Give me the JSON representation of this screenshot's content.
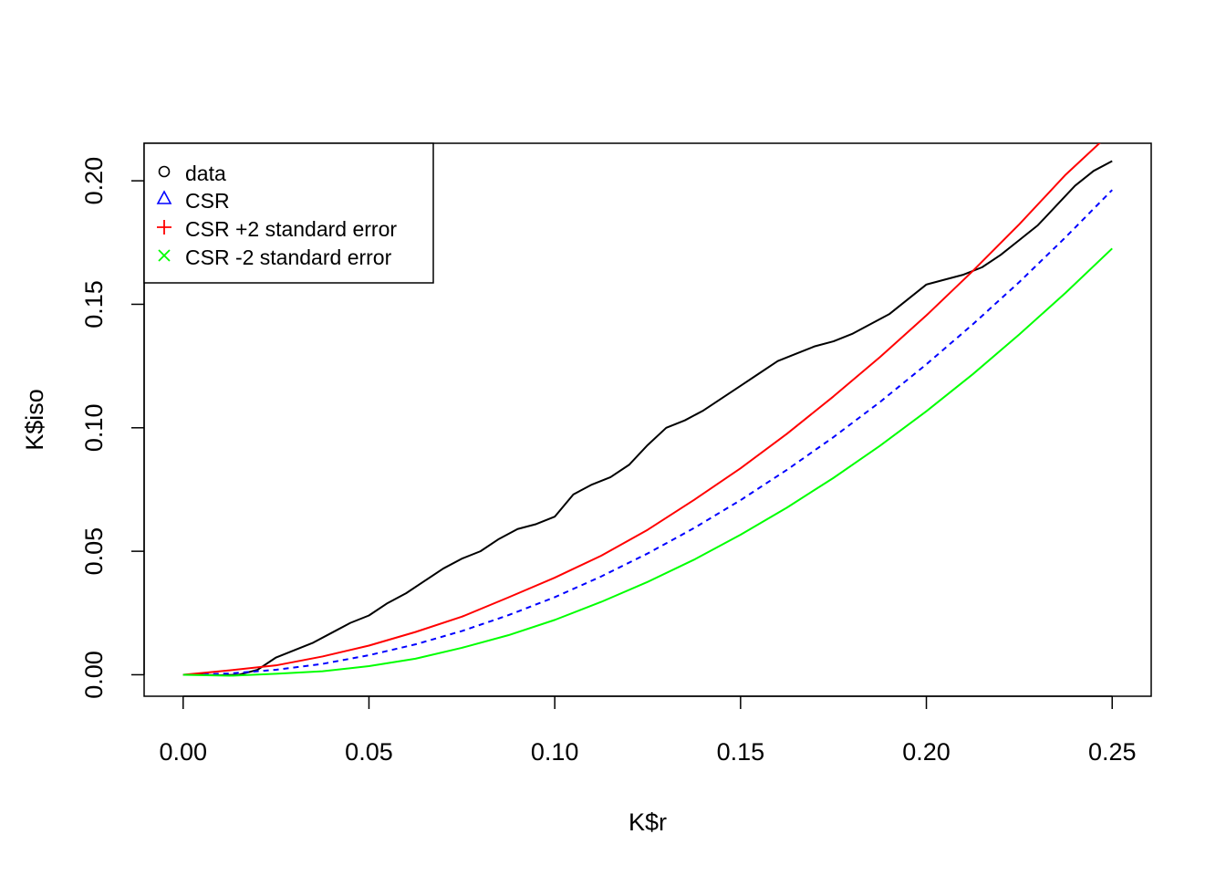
{
  "chart_data": {
    "type": "line",
    "title": "",
    "xlabel": "K$r",
    "ylabel": "K$iso",
    "xlim": [
      -0.0105,
      0.2605
    ],
    "ylim": [
      -0.0087,
      0.2152
    ],
    "x_ticks": [
      0.0,
      0.05,
      0.1,
      0.15,
      0.2,
      0.25
    ],
    "x_tick_labels": [
      "0.00",
      "0.05",
      "0.10",
      "0.15",
      "0.20",
      "0.25"
    ],
    "y_ticks": [
      0.0,
      0.05,
      0.1,
      0.15,
      0.2
    ],
    "y_tick_labels": [
      "0.00",
      "0.05",
      "0.10",
      "0.15",
      "0.20"
    ],
    "grid": false,
    "legend_position": "top-left",
    "legend": [
      {
        "label": "data",
        "symbol": "circle",
        "color": "#000000"
      },
      {
        "label": "CSR",
        "symbol": "triangle",
        "color": "#0000ff"
      },
      {
        "label": "CSR +2 standard error",
        "symbol": "plus",
        "color": "#ff0000"
      },
      {
        "label": "CSR -2 standard error",
        "symbol": "cross",
        "color": "#00ff00"
      }
    ],
    "series": [
      {
        "name": "data",
        "color": "#000000",
        "dash": "solid",
        "x": [
          0.0,
          0.005,
          0.01,
          0.015,
          0.02,
          0.025,
          0.03,
          0.035,
          0.04,
          0.045,
          0.05,
          0.055,
          0.06,
          0.065,
          0.07,
          0.075,
          0.08,
          0.085,
          0.09,
          0.095,
          0.1,
          0.105,
          0.11,
          0.115,
          0.12,
          0.125,
          0.13,
          0.135,
          0.14,
          0.145,
          0.15,
          0.155,
          0.16,
          0.165,
          0.17,
          0.175,
          0.18,
          0.185,
          0.19,
          0.195,
          0.2,
          0.205,
          0.21,
          0.215,
          0.22,
          0.225,
          0.23,
          0.235,
          0.24,
          0.245,
          0.25
        ],
        "y": [
          0.0,
          0.0,
          -0.0002,
          0.0,
          0.002,
          0.007,
          0.01,
          0.013,
          0.017,
          0.021,
          0.024,
          0.029,
          0.033,
          0.038,
          0.043,
          0.047,
          0.05,
          0.055,
          0.059,
          0.061,
          0.064,
          0.073,
          0.077,
          0.08,
          0.085,
          0.093,
          0.1,
          0.103,
          0.107,
          0.112,
          0.117,
          0.122,
          0.127,
          0.13,
          0.133,
          0.135,
          0.138,
          0.142,
          0.146,
          0.152,
          0.158,
          0.16,
          0.162,
          0.165,
          0.17,
          0.176,
          0.182,
          0.19,
          0.198,
          0.204,
          0.208
        ]
      },
      {
        "name": "CSR",
        "color": "#0000ff",
        "dash": "dashed",
        "x": [
          0.0,
          0.0125,
          0.025,
          0.0375,
          0.05,
          0.0625,
          0.075,
          0.0875,
          0.1,
          0.1125,
          0.125,
          0.1375,
          0.15,
          0.1625,
          0.175,
          0.1875,
          0.2,
          0.2125,
          0.225,
          0.2375,
          0.25
        ],
        "y": [
          0.0,
          0.0005,
          0.002,
          0.0044,
          0.0079,
          0.0123,
          0.0177,
          0.0241,
          0.0314,
          0.0398,
          0.0491,
          0.0594,
          0.0707,
          0.083,
          0.0962,
          0.1104,
          0.1257,
          0.1419,
          0.159,
          0.1772,
          0.1963
        ]
      },
      {
        "name": "CSR +2 standard error",
        "color": "#ff0000",
        "dash": "solid",
        "x": [
          0.0,
          0.0125,
          0.025,
          0.0375,
          0.05,
          0.0625,
          0.075,
          0.0875,
          0.1,
          0.1125,
          0.125,
          0.1375,
          0.15,
          0.1625,
          0.175,
          0.1875,
          0.2,
          0.2125,
          0.225,
          0.2375,
          0.2475
        ],
        "y": [
          0.0,
          0.0018,
          0.0038,
          0.0074,
          0.0118,
          0.0173,
          0.0235,
          0.0313,
          0.0393,
          0.0482,
          0.0587,
          0.0708,
          0.0836,
          0.0976,
          0.1127,
          0.1286,
          0.1455,
          0.1635,
          0.1824,
          0.2025,
          0.2165
        ]
      },
      {
        "name": "CSR -2 standard error",
        "color": "#00ff00",
        "dash": "solid",
        "x": [
          0.0,
          0.0125,
          0.025,
          0.0375,
          0.05,
          0.0625,
          0.075,
          0.0875,
          0.1,
          0.1125,
          0.125,
          0.1375,
          0.15,
          0.1625,
          0.175,
          0.1875,
          0.2,
          0.2125,
          0.225,
          0.2375,
          0.25
        ],
        "y": [
          0.0,
          -0.0004,
          0.0004,
          0.0014,
          0.0035,
          0.0065,
          0.0109,
          0.016,
          0.0222,
          0.0295,
          0.0376,
          0.0466,
          0.0567,
          0.0677,
          0.0797,
          0.0927,
          0.1067,
          0.1217,
          0.1378,
          0.1547,
          0.1726
        ]
      }
    ]
  }
}
